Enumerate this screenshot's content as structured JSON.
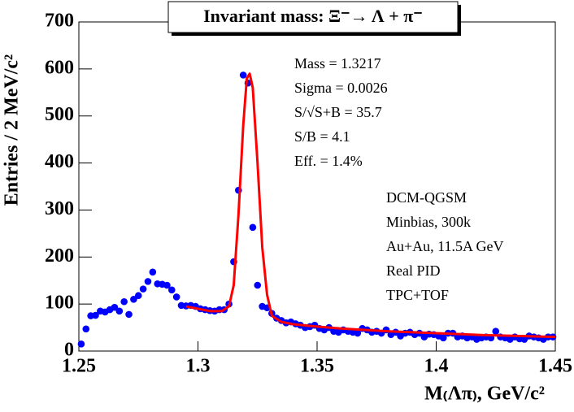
{
  "chart_data": {
    "type": "scatter",
    "title": "Invariant mass:  Ξ⁻→ Λ + π⁻",
    "x_label": "M₍Λπ₎, GeV/c²",
    "y_label": "Entries / 2 MeV/c²",
    "xlim": [
      1.25,
      1.45
    ],
    "ylim": [
      0,
      700
    ],
    "xticks": [
      {
        "value": 1.25,
        "label": "1.25"
      },
      {
        "value": 1.3,
        "label": "1.3"
      },
      {
        "value": 1.35,
        "label": "1.35"
      },
      {
        "value": 1.4,
        "label": "1.4"
      },
      {
        "value": 1.45,
        "label": "1.45"
      }
    ],
    "yticks": [
      0,
      100,
      200,
      300,
      400,
      500,
      600,
      700
    ],
    "annotations": [
      "Mass = 1.3217",
      "Sigma = 0.0026",
      "S/√S+B = 35.7",
      "S/B = 4.1",
      "Eff. = 1.4%",
      "DCM-QGSM",
      "Minbias, 300k",
      "Au+Au, 11.5A GeV",
      "Real PID",
      "TPC+TOF"
    ],
    "series": [
      {
        "type": "scatter",
        "color": "#0000ff",
        "x": [
          1.251,
          1.253,
          1.255,
          1.257,
          1.259,
          1.261,
          1.263,
          1.265,
          1.267,
          1.269,
          1.271,
          1.273,
          1.275,
          1.277,
          1.279,
          1.281,
          1.283,
          1.285,
          1.287,
          1.289,
          1.291,
          1.293,
          1.295,
          1.297,
          1.299,
          1.301,
          1.303,
          1.305,
          1.307,
          1.309,
          1.311,
          1.313,
          1.315,
          1.317,
          1.319,
          1.321,
          1.323,
          1.325,
          1.327,
          1.329,
          1.331,
          1.333,
          1.335,
          1.337,
          1.339,
          1.341,
          1.343,
          1.345,
          1.347,
          1.349,
          1.351,
          1.353,
          1.355,
          1.357,
          1.359,
          1.361,
          1.363,
          1.365,
          1.367,
          1.369,
          1.371,
          1.373,
          1.375,
          1.377,
          1.379,
          1.381,
          1.383,
          1.385,
          1.387,
          1.389,
          1.391,
          1.393,
          1.395,
          1.397,
          1.399,
          1.401,
          1.403,
          1.405,
          1.407,
          1.409,
          1.411,
          1.413,
          1.415,
          1.417,
          1.419,
          1.421,
          1.423,
          1.425,
          1.427,
          1.429,
          1.431,
          1.433,
          1.435,
          1.437,
          1.439,
          1.441,
          1.443,
          1.445,
          1.447,
          1.449
        ],
        "values": [
          15,
          47,
          75,
          76,
          85,
          83,
          88,
          93,
          85,
          105,
          78,
          110,
          118,
          132,
          148,
          168,
          143,
          142,
          140,
          130,
          115,
          97,
          96,
          97,
          95,
          90,
          88,
          86,
          85,
          88,
          88,
          100,
          190,
          342,
          587,
          570,
          263,
          140,
          95,
          92,
          80,
          70,
          65,
          60,
          62,
          58,
          55,
          50,
          52,
          55,
          48,
          45,
          50,
          42,
          40,
          45,
          42,
          40,
          38,
          48,
          45,
          40,
          42,
          38,
          45,
          35,
          40,
          32,
          38,
          40,
          35,
          38,
          30,
          36,
          35,
          32,
          28,
          38,
          38,
          30,
          32,
          28,
          30,
          25,
          28,
          30,
          28,
          42,
          30,
          28,
          25,
          30,
          26,
          25,
          32,
          30,
          28,
          25,
          30,
          30
        ]
      },
      {
        "type": "line",
        "color": "#ff0000",
        "x": [
          1.295,
          1.3,
          1.305,
          1.31,
          1.313,
          1.315,
          1.317,
          1.319,
          1.3205,
          1.3217,
          1.323,
          1.325,
          1.327,
          1.329,
          1.331,
          1.335,
          1.34,
          1.35,
          1.36,
          1.38,
          1.4,
          1.42,
          1.45
        ],
        "values": [
          95,
          90,
          85,
          85,
          95,
          140,
          290,
          480,
          580,
          590,
          560,
          400,
          220,
          120,
          75,
          62,
          57,
          52,
          48,
          42,
          38,
          34,
          30
        ]
      }
    ]
  }
}
